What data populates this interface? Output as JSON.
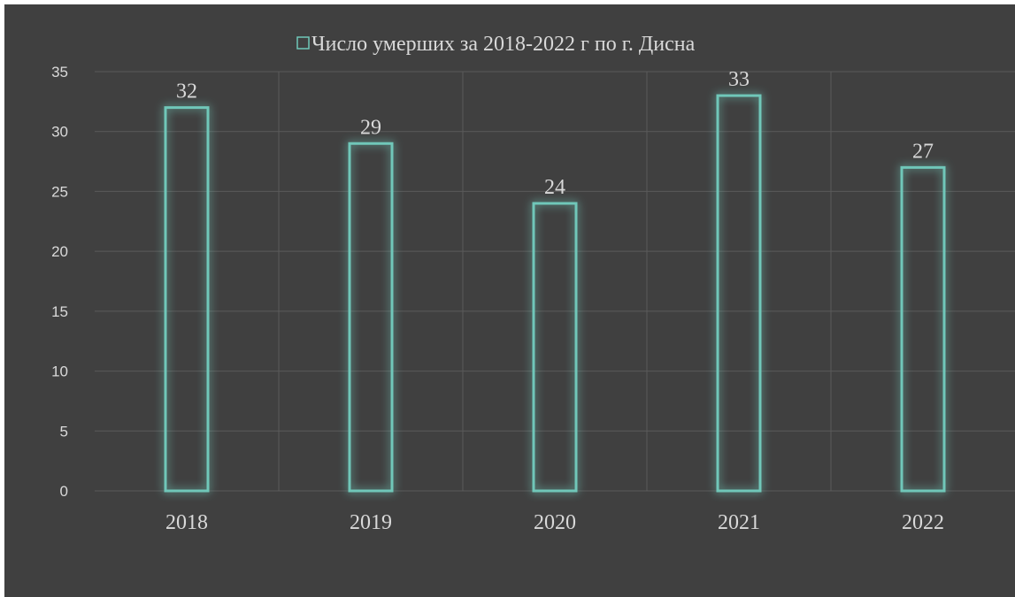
{
  "chart_data": {
    "type": "bar",
    "categories": [
      "2018",
      "2019",
      "2020",
      "2021",
      "2022"
    ],
    "series": [
      {
        "name": "Число умерших за 2018-2022 г по г. Дисна",
        "values": [
          32,
          29,
          24,
          33,
          27
        ]
      }
    ],
    "title": "",
    "xlabel": "",
    "ylabel": "",
    "ylim": [
      0,
      35
    ],
    "yticks": [
      0,
      5,
      10,
      15,
      20,
      25,
      30,
      35
    ],
    "grid": true,
    "legend_position": "top",
    "data_labels": true,
    "colors": {
      "background": "#404040",
      "bar_outline": "#6fc7b9",
      "bar_glow": "#4fb3a3",
      "gridline": "#5a5a5a",
      "text": "#d9d9d9"
    }
  }
}
